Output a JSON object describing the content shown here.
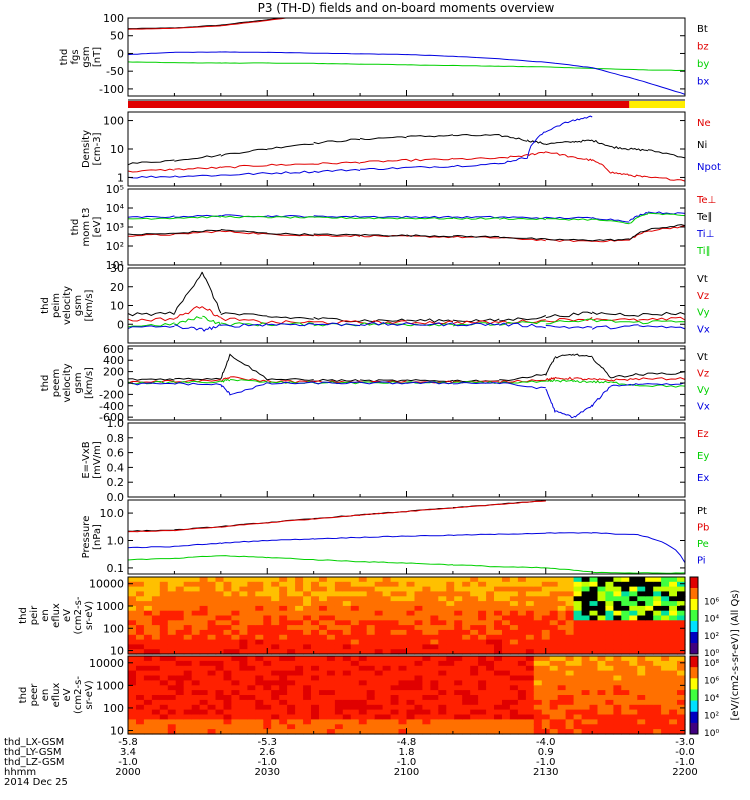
{
  "title": "P3 (TH-D) fields and on-board moments overview",
  "colorbar_label": "[eV/(cm2-s-sr-eV)] (All Qs)",
  "colorbar_ticks": [
    "10⁸",
    "10⁶",
    "10⁴",
    "10²",
    "10⁰"
  ],
  "footer": {
    "row_labels": [
      "thd_LX-GSM",
      "thd_LY-GSM",
      "thd_LZ-GSM",
      "hhmm",
      "2014 Dec 25"
    ],
    "columns": [
      [
        "-5.8",
        "3.4",
        "-1.0",
        "2000"
      ],
      [
        "-5.3",
        "2.6",
        "-1.0",
        "2030"
      ],
      [
        "-4.8",
        "1.8",
        "-1.0",
        "2100"
      ],
      [
        "-4.0",
        "0.9",
        "-1.0",
        "2130"
      ],
      [
        "-3.0",
        "-0.0",
        "-1.0",
        "2200"
      ]
    ]
  },
  "colors": {
    "black": "#000000",
    "red": "#e00000",
    "green": "#00d000",
    "blue": "#0000e0",
    "yellow": "#ffee00"
  },
  "chart_data": [
    {
      "type": "line",
      "id": "fgs",
      "ylabel": [
        "thd",
        "fgs",
        "gsm",
        "[nT]"
      ],
      "ylim": [
        -120,
        100
      ],
      "yticks": [
        "100",
        "50",
        "0",
        "-50",
        "-100"
      ],
      "tick_values": [
        100,
        50,
        0,
        -50,
        -100
      ],
      "legend": [
        "Bt",
        "bz",
        "by",
        "bx"
      ],
      "legend_colors": [
        "black",
        "red",
        "green",
        "blue"
      ],
      "x": [
        0,
        5,
        10,
        15,
        20,
        25,
        30,
        35,
        40,
        45,
        50,
        55,
        60
      ],
      "series": [
        {
          "color": "black",
          "values": [
            70,
            72,
            80,
            95,
            112,
            null,
            null,
            null,
            null,
            null,
            null,
            null,
            null
          ]
        },
        {
          "color": "red",
          "values": [
            68,
            71,
            78,
            93,
            110,
            null,
            null,
            null,
            null,
            null,
            null,
            null,
            null
          ]
        },
        {
          "color": "green",
          "values": [
            -24,
            -26,
            -27,
            -27,
            -28,
            -30,
            -32,
            -34,
            -36,
            -38,
            -42,
            -46,
            -48
          ]
        },
        {
          "color": "blue",
          "values": [
            -3,
            3,
            4,
            3,
            1,
            -1,
            -3,
            -8,
            -15,
            -25,
            -40,
            -75,
            -115
          ]
        }
      ]
    },
    {
      "type": "bar",
      "id": "mode_bar",
      "segments": [
        {
          "from": 0,
          "to": 54,
          "color": "red"
        },
        {
          "from": 54,
          "to": 60,
          "color": "yellow"
        }
      ]
    },
    {
      "type": "line",
      "id": "density",
      "ylabel": [
        "Density",
        "[cm-3]"
      ],
      "log": true,
      "ylim": [
        0.5,
        200
      ],
      "yticks": [
        "100",
        "10",
        "1"
      ],
      "tick_values": [
        100,
        10,
        1
      ],
      "legend": [
        "Ne",
        "Ni",
        "Npot"
      ],
      "legend_colors": [
        "red",
        "black",
        "blue"
      ],
      "x": [
        0,
        5,
        10,
        15,
        20,
        25,
        30,
        35,
        40,
        43,
        45,
        48,
        50,
        52,
        54,
        56,
        60
      ],
      "series": [
        {
          "color": "black",
          "values": [
            3,
            4,
            6,
            10,
            16,
            22,
            27,
            30,
            30,
            20,
            15,
            18,
            20,
            12,
            10,
            9,
            5
          ]
        },
        {
          "color": "red",
          "values": [
            1.6,
            1.9,
            2.2,
            2.7,
            3,
            3.4,
            4,
            4.4,
            4.7,
            6,
            8,
            5,
            4,
            1.5,
            1.2,
            1,
            0.8
          ]
        },
        {
          "color": "blue",
          "values": [
            1,
            1.1,
            1.2,
            1.4,
            1.6,
            1.9,
            2.2,
            2.5,
            3,
            5,
            40,
            100,
            140,
            null,
            null,
            null,
            null
          ]
        }
      ]
    },
    {
      "type": "line",
      "id": "mom_t3",
      "ylabel": [
        "thd",
        "mom t3",
        "[eV]"
      ],
      "log": true,
      "ylim": [
        10,
        100000
      ],
      "yticks": [
        "10⁵",
        "10⁴",
        "10³",
        "10²",
        "10¹"
      ],
      "tick_values": [
        100000,
        10000,
        1000,
        100,
        10
      ],
      "legend": [
        "Te⊥",
        "Te∥",
        "Ti⊥",
        "Ti∥"
      ],
      "legend_colors": [
        "red",
        "black",
        "blue",
        "green"
      ],
      "x": [
        0,
        5,
        10,
        15,
        20,
        25,
        30,
        35,
        40,
        45,
        50,
        54,
        56,
        60
      ],
      "series": [
        {
          "color": "red",
          "values": [
            350,
            400,
            600,
            420,
            360,
            340,
            320,
            300,
            270,
            200,
            180,
            200,
            600,
            1100
          ]
        },
        {
          "color": "black",
          "values": [
            400,
            450,
            700,
            460,
            400,
            380,
            360,
            330,
            300,
            220,
            200,
            220,
            700,
            1300
          ]
        },
        {
          "color": "blue",
          "values": [
            3200,
            3500,
            4000,
            3800,
            3600,
            3500,
            3400,
            3300,
            3300,
            3000,
            3000,
            2000,
            6000,
            5000
          ]
        },
        {
          "color": "green",
          "values": [
            2700,
            3000,
            3500,
            3300,
            3100,
            3000,
            2900,
            2800,
            2800,
            2600,
            2500,
            1500,
            5000,
            4200
          ]
        }
      ]
    },
    {
      "type": "line",
      "id": "peim_velocity",
      "ylabel": [
        "thd",
        "peim",
        "velocity",
        "gsm",
        "[km/s]"
      ],
      "ylim": [
        -10,
        30
      ],
      "yticks": [
        "30",
        "20",
        "10",
        "0"
      ],
      "tick_values": [
        30,
        20,
        10,
        0
      ],
      "legend": [
        "Vt",
        "Vz",
        "Vy",
        "Vx"
      ],
      "legend_colors": [
        "black",
        "red",
        "green",
        "blue"
      ],
      "x": [
        0,
        5,
        8,
        10,
        15,
        20,
        25,
        30,
        35,
        40,
        45,
        50,
        55,
        60
      ],
      "series": [
        {
          "color": "black",
          "values": [
            5,
            6,
            28,
            6,
            4,
            3,
            2,
            2,
            2,
            2,
            4,
            6,
            5,
            6
          ]
        },
        {
          "color": "red",
          "values": [
            2,
            3,
            10,
            3,
            1,
            1,
            1,
            1,
            1,
            1,
            2,
            3,
            2,
            3
          ]
        },
        {
          "color": "green",
          "values": [
            -1,
            0,
            4,
            0,
            0,
            0,
            0,
            0,
            0,
            0,
            1,
            2,
            1,
            2
          ]
        },
        {
          "color": "blue",
          "values": [
            -2,
            -1,
            -3,
            -1,
            0,
            0,
            0,
            0,
            0,
            0,
            -1,
            -2,
            -1,
            -2
          ]
        }
      ]
    },
    {
      "type": "line",
      "id": "peem_velocity",
      "ylabel": [
        "thd",
        "peem",
        "velocity",
        "gsm",
        "[km/s]"
      ],
      "ylim": [
        -650,
        650
      ],
      "yticks": [
        "600",
        "400",
        "200",
        "0",
        "-200",
        "-400",
        "-600"
      ],
      "tick_values": [
        600,
        400,
        200,
        0,
        -200,
        -400,
        -600
      ],
      "legend": [
        "Vt",
        "Vz",
        "Vy",
        "Vx"
      ],
      "legend_colors": [
        "black",
        "red",
        "green",
        "blue"
      ],
      "x": [
        0,
        5,
        10,
        11,
        15,
        20,
        25,
        30,
        35,
        40,
        45,
        46,
        48,
        50,
        52,
        55,
        60
      ],
      "series": [
        {
          "color": "black",
          "values": [
            60,
            70,
            80,
            500,
            70,
            50,
            40,
            40,
            40,
            40,
            150,
            450,
            500,
            450,
            100,
            150,
            180
          ]
        },
        {
          "color": "red",
          "values": [
            20,
            30,
            40,
            100,
            30,
            20,
            20,
            20,
            20,
            20,
            60,
            80,
            80,
            60,
            50,
            70,
            80
          ]
        },
        {
          "color": "green",
          "values": [
            0,
            10,
            20,
            60,
            10,
            5,
            5,
            5,
            5,
            5,
            20,
            40,
            30,
            20,
            10,
            -40,
            -60
          ]
        },
        {
          "color": "blue",
          "values": [
            -20,
            -10,
            -30,
            -200,
            -10,
            0,
            0,
            0,
            0,
            0,
            -100,
            -500,
            -600,
            -400,
            -50,
            -20,
            -10
          ]
        }
      ]
    },
    {
      "type": "line",
      "id": "e_vxb",
      "ylabel": [
        "E=-VxB",
        "[mV/m]"
      ],
      "ylim": [
        0,
        1
      ],
      "yticks": [
        "1.0",
        "0.8",
        "0.6",
        "0.4",
        "0.2",
        "0.0"
      ],
      "tick_values": [
        1,
        0.8,
        0.6,
        0.4,
        0.2,
        0
      ],
      "legend": [
        "Ez",
        "Ey",
        "Ex"
      ],
      "legend_colors": [
        "red",
        "green",
        "blue"
      ],
      "series": []
    },
    {
      "type": "line",
      "id": "pressure",
      "ylabel": [
        "Pressure",
        "[nPa]"
      ],
      "log": true,
      "ylim": [
        0.06,
        30
      ],
      "yticks": [
        "10.0",
        "1.0",
        "0.1"
      ],
      "tick_values": [
        10,
        1,
        0.1
      ],
      "legend": [
        "Pt",
        "Pb",
        "Pe",
        "Pi"
      ],
      "legend_colors": [
        "black",
        "red",
        "green",
        "blue"
      ],
      "x": [
        0,
        5,
        10,
        15,
        20,
        25,
        30,
        35,
        40,
        45,
        50,
        55,
        60
      ],
      "series": [
        {
          "color": "black",
          "values": [
            2.2,
            2.4,
            3.2,
            4.5,
            6.2,
            8.5,
            11.5,
            15.5,
            21,
            28,
            null,
            null,
            null
          ]
        },
        {
          "color": "red",
          "values": [
            2.1,
            2.3,
            3.1,
            4.4,
            6.1,
            8.4,
            11.4,
            15.4,
            20.8,
            27.8,
            null,
            null,
            null
          ]
        },
        {
          "color": "green",
          "values": [
            0.2,
            0.22,
            0.28,
            0.24,
            0.2,
            0.17,
            0.15,
            0.13,
            0.11,
            0.1,
            0.07,
            0.065,
            0.065
          ]
        },
        {
          "color": "blue",
          "values": [
            0.55,
            0.6,
            0.8,
            1.0,
            1.15,
            1.3,
            1.45,
            1.55,
            1.7,
            1.85,
            1.9,
            1.6,
            0.15
          ]
        }
      ]
    },
    {
      "type": "heatmap",
      "id": "peir_en_eflux",
      "ylabel": [
        "thd",
        "peir",
        "en",
        "eflux",
        "eV",
        "(cm2-s-",
        "sr-eV)"
      ],
      "log": true,
      "ylim": [
        7,
        20000
      ],
      "yticks": [
        "10000",
        "1000",
        "100",
        "10"
      ],
      "tick_values": [
        10000,
        1000,
        100,
        10
      ]
    },
    {
      "type": "heatmap",
      "id": "peer_en_eflux",
      "ylabel": [
        "thd",
        "peer",
        "en",
        "eflux",
        "eV",
        "(cm2-s-",
        "sr-eV)"
      ],
      "log": true,
      "ylim": [
        7,
        20000
      ],
      "yticks": [
        "10000",
        "1000",
        "100",
        "10"
      ],
      "tick_values": [
        10000,
        1000,
        100,
        10
      ]
    }
  ]
}
